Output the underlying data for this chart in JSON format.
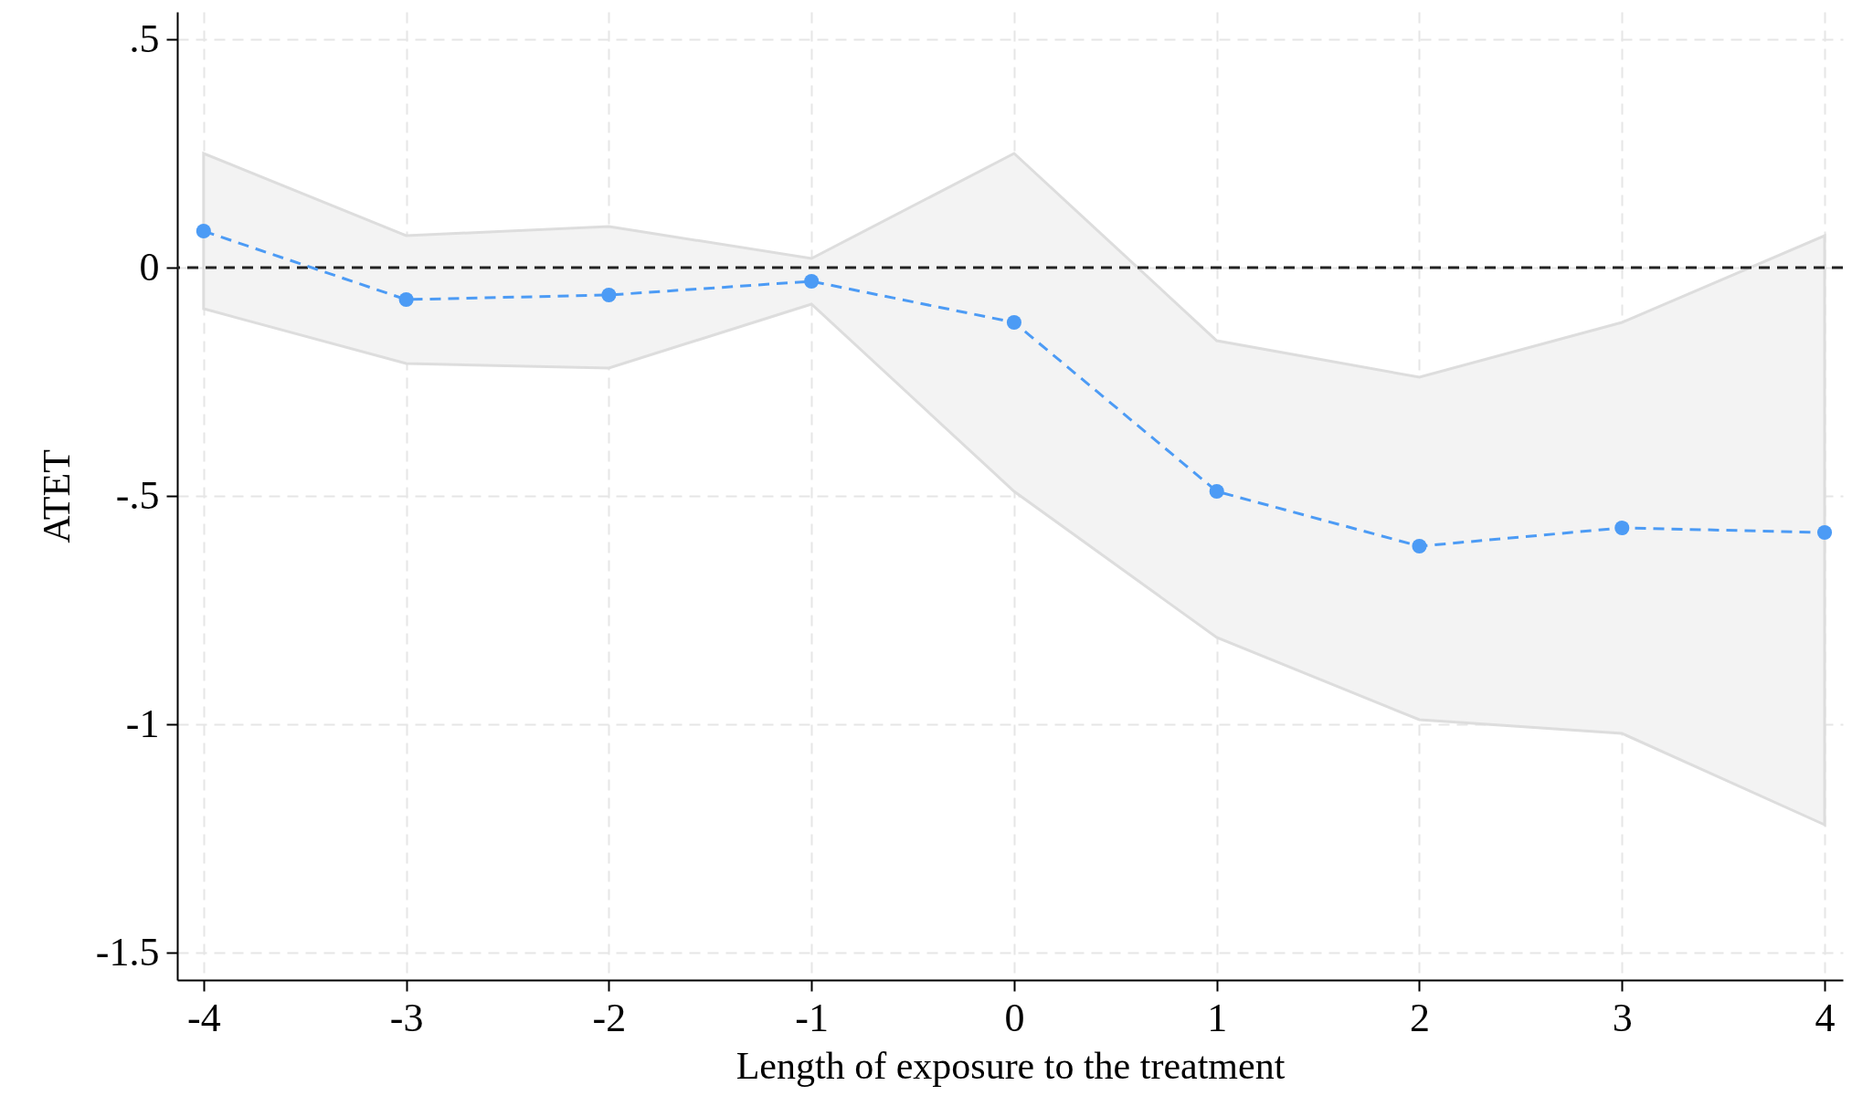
{
  "chart_data": {
    "type": "line",
    "xlabel": "Length of exposure to the treatment",
    "ylabel": "ATET",
    "x": [
      -4,
      -3,
      -2,
      -1,
      0,
      1,
      2,
      3,
      4
    ],
    "series": [
      {
        "color": "#4c9bf5",
        "values": [
          0.08,
          -0.07,
          -0.06,
          -0.03,
          -0.12,
          -0.49,
          -0.61,
          -0.57,
          -0.58
        ],
        "lower": [
          -0.09,
          -0.21,
          -0.22,
          -0.08,
          -0.49,
          -0.81,
          -0.99,
          -1.02,
          -1.22
        ],
        "upper": [
          0.25,
          0.07,
          0.09,
          0.02,
          0.25,
          -0.16,
          -0.24,
          -0.12,
          0.07
        ]
      }
    ],
    "xlim": [
      -4.13,
      4.09
    ],
    "xticks": [
      -4,
      -3,
      -2,
      -1,
      0,
      1,
      2,
      3,
      4
    ],
    "ylim": [
      -1.56,
      0.56
    ],
    "yticks": [
      {
        "value": -1.5,
        "label": "-1.5"
      },
      -1,
      {
        "value": -0.5,
        "label": "-.5"
      },
      0,
      {
        "value": 0.5,
        "label": ".5"
      }
    ],
    "ref_lines": [
      {
        "axis": "y",
        "value": 0,
        "color": "#222222",
        "line_style": "dashed"
      }
    ],
    "grid": true,
    "marker": "circle",
    "line_style": "dashed"
  }
}
